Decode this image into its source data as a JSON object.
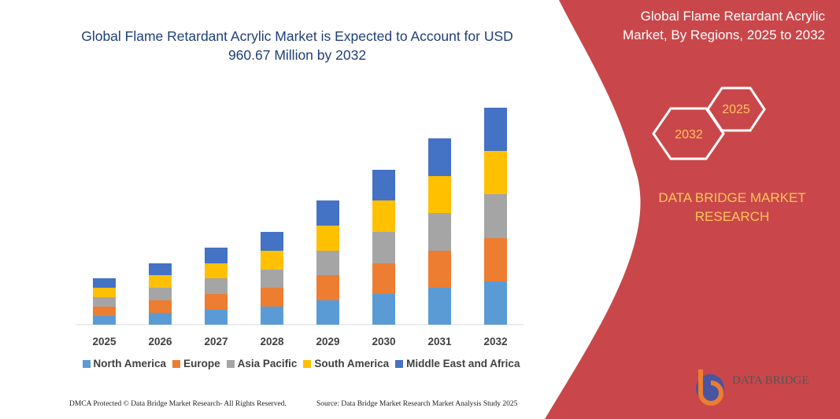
{
  "chart_data": {
    "type": "stacked_bar",
    "title": "Global Flame Retardant Acrylic Market is Expected to Account for USD 960.67 Million by 2032",
    "categories": [
      "2025",
      "2026",
      "2027",
      "2028",
      "2029",
      "2030",
      "2031",
      "2032"
    ],
    "series": [
      {
        "name": "North America",
        "color": "#5b9bd5",
        "values": [
          11,
          15,
          19,
          23,
          31,
          39,
          47,
          55
        ]
      },
      {
        "name": "Europe",
        "color": "#ed7d31",
        "values": [
          12,
          16,
          20,
          24,
          32,
          39,
          47,
          55
        ]
      },
      {
        "name": "Asia Pacific",
        "color": "#a5a5a5",
        "values": [
          12,
          16,
          20,
          23,
          31,
          40,
          48,
          56
        ]
      },
      {
        "name": "South America",
        "color": "#ffc000",
        "values": [
          12,
          16,
          19,
          24,
          32,
          40,
          47,
          55
        ]
      },
      {
        "name": "Middle East and Africa",
        "color": "#4472c4",
        "values": [
          12,
          15,
          20,
          24,
          32,
          39,
          48,
          55
        ]
      }
    ],
    "legend": "bottom"
  },
  "side_panel": {
    "title": "Global Flame Retardant Acrylic Market, By Regions, 2025 to 2032",
    "hex_labels": [
      "2025",
      "2032"
    ],
    "brand": "DATA BRIDGE MARKET RESEARCH",
    "logo": "DATA BRIDGE"
  },
  "footer": {
    "left": "DMCA Protected © Data Bridge Market Research- All Rights Reserved.",
    "right": "Source: Data Bridge Market Research Market Analysis Study 2025"
  }
}
